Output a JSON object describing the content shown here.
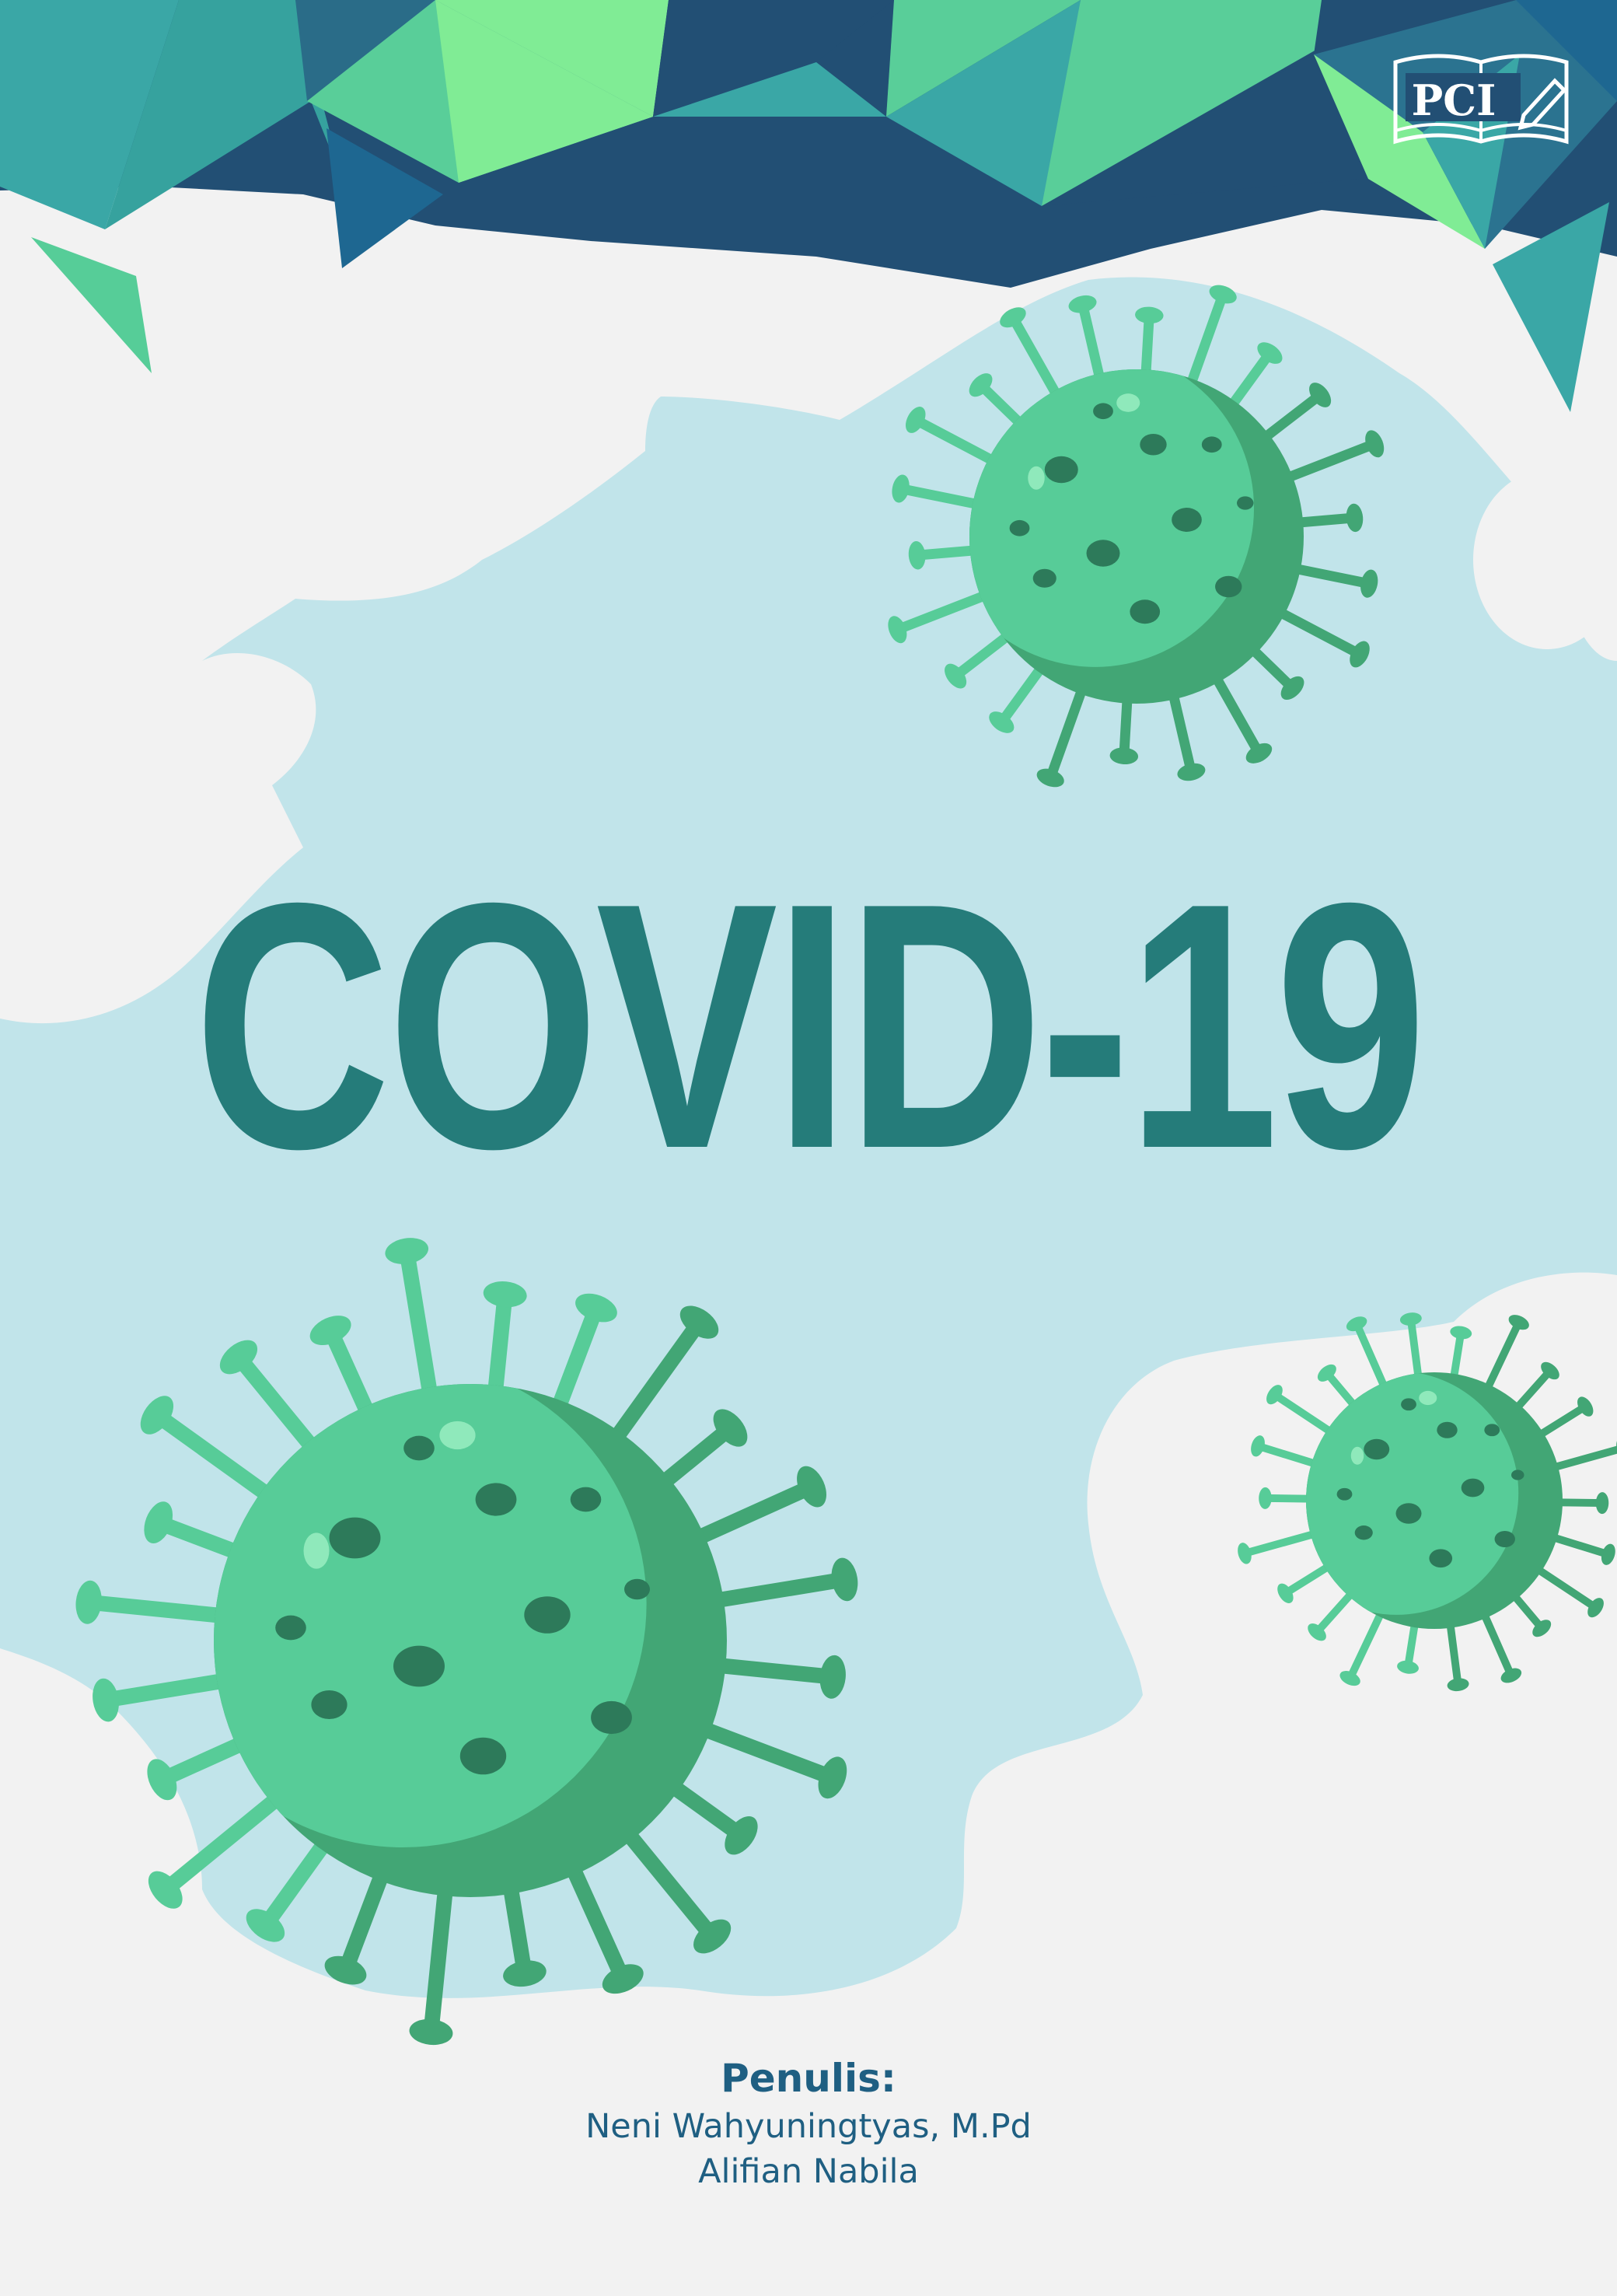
{
  "publisher": {
    "logo_text": "PCI"
  },
  "cover": {
    "title": "COVID-19"
  },
  "authors": {
    "label": "Penulis:",
    "names": [
      "Neni Wahyuningtyas, M.Pd",
      "Alifian Nabila"
    ]
  },
  "colors": {
    "background": "#f2f2f2",
    "sky": "#c1e4ea",
    "title": "#257c7a",
    "author_text": "#1f5f82",
    "virus_light": "#57cc98",
    "virus_dark": "#42a675"
  }
}
